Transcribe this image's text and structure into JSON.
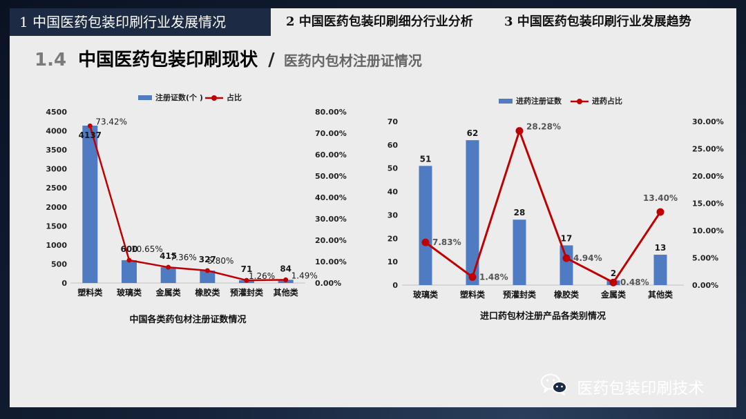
{
  "header": {
    "tabs": [
      {
        "label": "1  中国医药包装印刷行业发展情况",
        "active": true
      },
      {
        "label": "2  中国医药包装印刷细分行业分析",
        "active": false
      },
      {
        "label": "3  中国医药包装印刷行业发展趋势",
        "active": false
      }
    ]
  },
  "title": {
    "number": "1.4",
    "main": "中国医药包装印刷现状",
    "slash": "/",
    "sub": "医药内包材注册证情况"
  },
  "chart_data": [
    {
      "type": "bar",
      "title": "中国各类药包材注册证数情况",
      "categories": [
        "塑料类",
        "玻璃类",
        "金属类",
        "橡胶类",
        "预灌封类",
        "其他类"
      ],
      "series": [
        {
          "name": "注册证数(个 )",
          "kind": "bar",
          "axis": "left",
          "values": [
            4137,
            600,
            415,
            327,
            71,
            84
          ],
          "labels": [
            "4137",
            "600",
            "415",
            "327",
            "71",
            "84"
          ]
        },
        {
          "name": "占比",
          "kind": "line",
          "axis": "right",
          "values": [
            73.42,
            10.65,
            7.36,
            5.8,
            1.26,
            1.49
          ],
          "labels": [
            "73.42%",
            "10.65%",
            "7.36%",
            "5.80%",
            "1.26%",
            "1.49%"
          ]
        }
      ],
      "y_left": {
        "min": 0,
        "max": 4500,
        "ticks": [
          "0",
          "500",
          "1000",
          "1500",
          "2000",
          "2500",
          "3000",
          "3500",
          "4000",
          "4500"
        ]
      },
      "y_right": {
        "min": 0,
        "max": 80,
        "ticks": [
          "0.00%",
          "10.00%",
          "20.00%",
          "30.00%",
          "40.00%",
          "50.00%",
          "60.00%",
          "70.00%",
          "80.00%"
        ]
      },
      "legend": "top",
      "grid": false,
      "colors": {
        "bar": "#4f7bc2",
        "line": "#c00000"
      }
    },
    {
      "type": "bar",
      "title": "进口药包材注册产品各类别情况",
      "categories": [
        "玻璃类",
        "塑料类",
        "预灌封类",
        "橡胶类",
        "金属类",
        "其他类"
      ],
      "series": [
        {
          "name": "进药注册证数",
          "kind": "bar",
          "axis": "left",
          "values": [
            51,
            62,
            28,
            17,
            2,
            13
          ],
          "labels": [
            "51",
            "62",
            "28",
            "17",
            "2",
            "13"
          ]
        },
        {
          "name": "进药占比",
          "kind": "line",
          "axis": "right",
          "values": [
            7.83,
            1.48,
            28.28,
            4.94,
            0.48,
            13.4
          ],
          "labels": [
            "7.83%",
            "1.48%",
            "28.28%",
            "4.94%",
            "0.48%",
            "13.40%"
          ]
        }
      ],
      "y_left": {
        "min": 0,
        "max": 70,
        "ticks": [
          "0",
          "10",
          "20",
          "30",
          "40",
          "50",
          "60",
          "70"
        ]
      },
      "y_right": {
        "min": 0,
        "max": 30,
        "ticks": [
          "0.00%",
          "5.00%",
          "10.00%",
          "15.00%",
          "20.00%",
          "25.00%",
          "30.00%"
        ]
      },
      "legend": "top",
      "grid": false,
      "colors": {
        "bar": "#4f7bc2",
        "line": "#c00000"
      }
    }
  ],
  "watermark": {
    "text": "医药包装印刷技术",
    "icon": "wechat-icon"
  }
}
